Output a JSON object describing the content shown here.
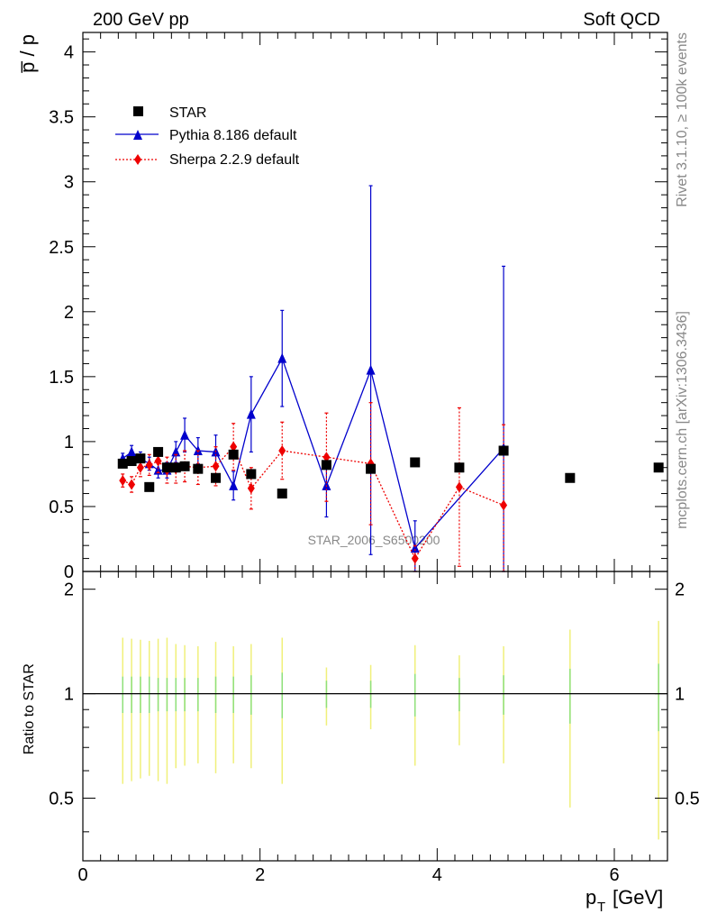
{
  "header": {
    "left": "200 GeV pp",
    "right": "Soft QCD"
  },
  "side_labels": {
    "rivet": "Rivet 3.1.10, ≥ 100k events",
    "mcplots": "mcplots.cern.ch [arXiv:1306.3436]"
  },
  "watermark": "STAR_2006_S6500200",
  "colors": {
    "star": "#000000",
    "pythia": "#0000cc",
    "sherpa": "#ee0000",
    "band_green": "#8fe07a",
    "band_yellow": "#f0f07a"
  },
  "chart_data": [
    {
      "type": "scatter",
      "ylabel": "p̅ / p",
      "ylim": [
        0,
        4.15
      ],
      "yticks": [
        "0",
        "0.5",
        "1",
        "1.5",
        "2",
        "2.5",
        "3",
        "3.5",
        "4"
      ],
      "xlim": [
        0,
        6.6
      ],
      "legend_position": "top-left",
      "series": [
        {
          "name": "STAR",
          "x": [
            0.45,
            0.55,
            0.65,
            0.75,
            0.85,
            0.95,
            1.05,
            1.15,
            1.3,
            1.5,
            1.7,
            1.9,
            2.25,
            2.75,
            3.25,
            3.75,
            4.25,
            4.75,
            5.5,
            6.5
          ],
          "y": [
            0.83,
            0.85,
            0.87,
            0.65,
            0.92,
            0.8,
            0.8,
            0.81,
            0.79,
            0.72,
            0.9,
            0.75,
            0.6,
            0.82,
            0.79,
            0.84,
            0.8,
            0.93,
            0.72,
            0.8
          ]
        },
        {
          "name": "Pythia 8.186 default",
          "x": [
            0.45,
            0.55,
            0.65,
            0.75,
            0.85,
            0.95,
            1.05,
            1.15,
            1.3,
            1.5,
            1.7,
            1.9,
            2.25,
            2.75,
            3.25,
            3.75,
            4.75
          ],
          "y": [
            0.87,
            0.92,
            0.87,
            0.83,
            0.78,
            0.78,
            0.92,
            1.05,
            0.93,
            0.92,
            0.66,
            1.21,
            1.64,
            0.66,
            1.55,
            0.18,
            0.95
          ],
          "yerr": [
            0.04,
            0.05,
            0.05,
            0.05,
            0.06,
            0.06,
            0.08,
            0.13,
            0.1,
            0.13,
            0.11,
            0.29,
            0.37,
            0.24,
            1.42,
            0.21,
            1.4
          ]
        },
        {
          "name": "Sherpa 2.2.9 default",
          "x": [
            0.45,
            0.55,
            0.65,
            0.75,
            0.85,
            0.95,
            1.05,
            1.15,
            1.3,
            1.5,
            1.7,
            1.9,
            2.25,
            2.75,
            3.25,
            3.75,
            4.25,
            4.75
          ],
          "y": [
            0.7,
            0.67,
            0.8,
            0.82,
            0.85,
            0.78,
            0.79,
            0.81,
            0.8,
            0.81,
            0.96,
            0.64,
            0.93,
            0.88,
            0.83,
            0.1,
            0.65,
            0.51
          ],
          "yerr": [
            0.05,
            0.06,
            0.07,
            0.08,
            0.09,
            0.1,
            0.11,
            0.12,
            0.13,
            0.15,
            0.18,
            0.16,
            0.22,
            0.34,
            0.47,
            0.1,
            0.61,
            0.62
          ]
        }
      ]
    },
    {
      "type": "scatter",
      "ylabel": "Ratio to STAR",
      "xlabel": "p_T [GeV]",
      "xlim": [
        0,
        6.6
      ],
      "ylim": [
        0.33,
        2.25
      ],
      "yticks": [
        "0.5",
        "1",
        "2"
      ],
      "xticks": [
        "0",
        "2",
        "4",
        "6"
      ],
      "reference_line": 1,
      "uncertainty_bands": {
        "x": [
          0.45,
          0.55,
          0.65,
          0.75,
          0.85,
          0.95,
          1.05,
          1.15,
          1.3,
          1.5,
          1.7,
          1.9,
          2.25,
          2.75,
          3.25,
          3.75,
          4.25,
          4.75,
          5.5,
          6.5
        ],
        "stat": [
          0.12,
          0.12,
          0.12,
          0.12,
          0.11,
          0.11,
          0.11,
          0.11,
          0.11,
          0.12,
          0.12,
          0.13,
          0.15,
          0.09,
          0.09,
          0.14,
          0.11,
          0.13,
          0.18,
          0.22
        ],
        "total": [
          0.45,
          0.44,
          0.43,
          0.42,
          0.44,
          0.45,
          0.39,
          0.38,
          0.37,
          0.41,
          0.37,
          0.39,
          0.45,
          0.19,
          0.21,
          0.38,
          0.29,
          0.37,
          0.53,
          0.62
        ]
      }
    }
  ]
}
